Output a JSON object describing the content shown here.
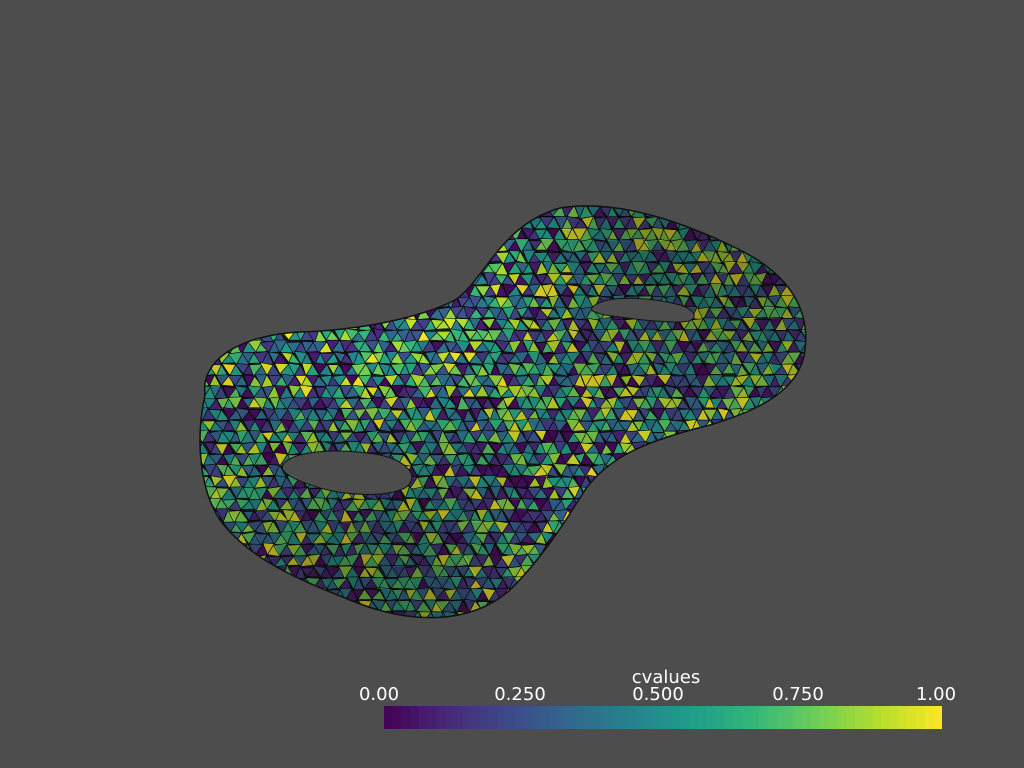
{
  "scalar_bar": {
    "title": "cvalues",
    "ticks": [
      {
        "value": 0.0,
        "label": "0.00"
      },
      {
        "value": 0.25,
        "label": "0.250"
      },
      {
        "value": 0.5,
        "label": "0.500"
      },
      {
        "value": 0.75,
        "label": "0.750"
      },
      {
        "value": 1.0,
        "label": "1.00"
      }
    ],
    "range": [
      0,
      1
    ],
    "colormap": "viridis",
    "colormap_stops": [
      "#440154",
      "#482878",
      "#3e4989",
      "#31688e",
      "#26828e",
      "#1f9e89",
      "#35b779",
      "#6ece58",
      "#b5de2b",
      "#fde725"
    ]
  },
  "colors": {
    "background": "#4d4d4d",
    "edge": "#000000"
  }
}
